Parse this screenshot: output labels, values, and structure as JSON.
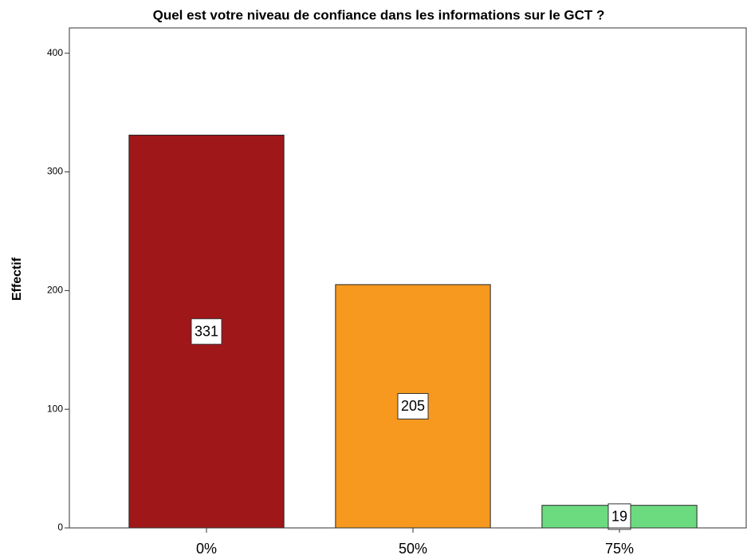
{
  "chart_data": {
    "type": "bar",
    "title": "Quel est votre niveau de confiance dans les informations sur le GCT ?",
    "y_label": "Effectif",
    "categories": [
      "0%",
      "50%",
      "75%"
    ],
    "values": [
      331,
      205,
      19
    ],
    "colors": [
      "#a01719",
      "#f7991f",
      "#6cdb7f"
    ],
    "ylim": [
      0,
      420
    ],
    "yticks": [
      0,
      100,
      200,
      300,
      400
    ],
    "grid": false
  }
}
